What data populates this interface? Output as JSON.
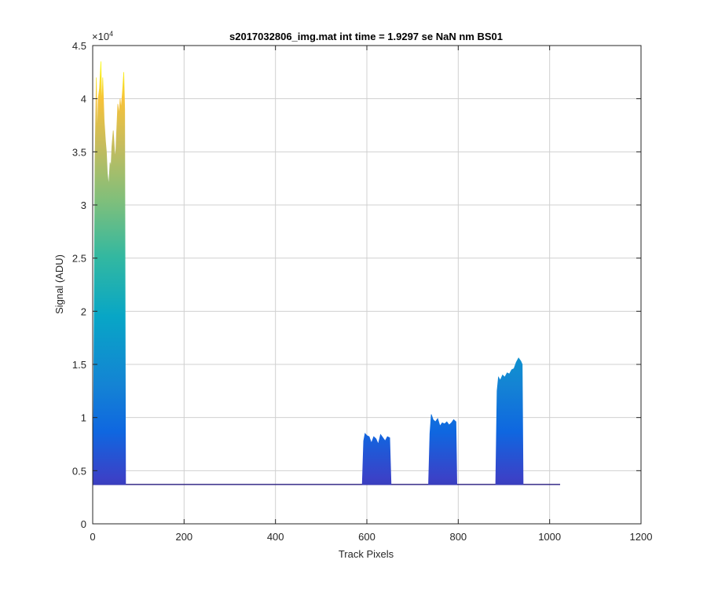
{
  "chart_data": {
    "type": "area",
    "title": "s2017032806_img.mat int time = 1.9297 se  NaN nm BS01",
    "xlabel": "Track Pixels",
    "ylabel": "Signal (ADU)",
    "xlim": [
      0,
      1200
    ],
    "ylim": [
      0,
      45000
    ],
    "y_exponent_label": "×10",
    "y_exponent_power": "4",
    "xticks": [
      0,
      200,
      400,
      600,
      800,
      1000,
      1200
    ],
    "xtick_labels": [
      "0",
      "200",
      "400",
      "600",
      "800",
      "1000",
      "1200"
    ],
    "yticks": [
      0,
      5000,
      10000,
      15000,
      20000,
      25000,
      30000,
      35000,
      40000,
      45000
    ],
    "ytick_labels": [
      "0",
      "0.5",
      "1",
      "1.5",
      "2",
      "2.5",
      "3",
      "3.5",
      "4",
      "4.5"
    ],
    "grid": true,
    "baseline": 3700,
    "x_end": 1023,
    "colormap": "parula",
    "color_low": "#352a87",
    "color_high": "#f9fb0e",
    "series": [
      {
        "x": [
          0,
          2,
          5,
          8,
          10,
          12,
          15,
          18,
          20,
          22,
          25,
          28,
          30,
          32,
          35,
          38,
          40,
          42,
          45,
          48,
          50,
          52,
          55,
          58,
          60,
          62,
          65,
          68,
          70,
          71,
          72
        ],
        "y": [
          3700,
          11000,
          34000,
          42000,
          36000,
          40000,
          41000,
          43500,
          39000,
          42000,
          38000,
          36000,
          35000,
          33000,
          31800,
          34000,
          33500,
          35500,
          37000,
          35000,
          34500,
          36500,
          39500,
          38500,
          40000,
          39000,
          40500,
          42500,
          39000,
          20000,
          3700
        ]
      },
      {
        "x": [
          590,
          593,
          596,
          600,
          605,
          610,
          615,
          620,
          625,
          630,
          635,
          640,
          645,
          650,
          653
        ],
        "y": [
          3700,
          7800,
          8500,
          8300,
          8200,
          7600,
          8200,
          8000,
          7500,
          8400,
          8100,
          7800,
          8200,
          8100,
          3700
        ]
      },
      {
        "x": [
          735,
          738,
          741,
          745,
          750,
          755,
          760,
          765,
          770,
          775,
          780,
          785,
          790,
          795,
          797
        ],
        "y": [
          3700,
          8500,
          10300,
          9800,
          9600,
          9900,
          9200,
          9500,
          9400,
          9600,
          9300,
          9500,
          9800,
          9600,
          3700
        ]
      },
      {
        "x": [
          882,
          885,
          888,
          892,
          897,
          902,
          907,
          912,
          917,
          922,
          927,
          932,
          937,
          940,
          942
        ],
        "y": [
          3700,
          12500,
          13800,
          13500,
          14000,
          13800,
          14200,
          14100,
          14500,
          14600,
          15200,
          15600,
          15300,
          15000,
          3700
        ]
      }
    ]
  }
}
